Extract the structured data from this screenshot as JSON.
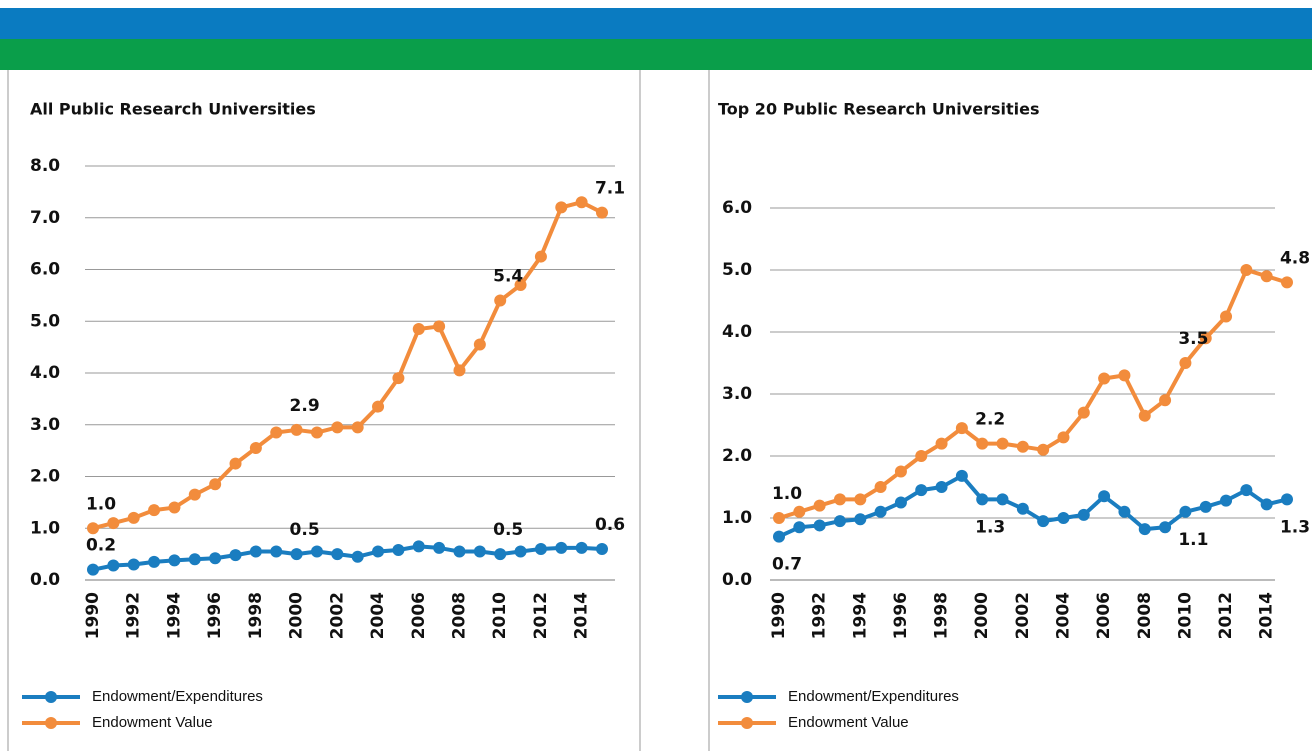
{
  "chart_data": [
    {
      "type": "line",
      "title": "All Public Research Universities",
      "categories": [
        "1990",
        null,
        "1992",
        null,
        "1994",
        null,
        "1996",
        null,
        "1998",
        null,
        "2000",
        null,
        "2002",
        null,
        "2004",
        null,
        "2006",
        null,
        "2008",
        null,
        "2010",
        null,
        "2012",
        null,
        "2014",
        null
      ],
      "series": [
        {
          "name": "Endowment/Expenditures",
          "color": "#1a7dc0",
          "values": [
            0.2,
            0.28,
            0.3,
            0.35,
            0.38,
            0.4,
            0.42,
            0.48,
            0.55,
            0.55,
            0.5,
            0.55,
            0.5,
            0.45,
            0.55,
            0.58,
            0.65,
            0.62,
            0.55,
            0.55,
            0.5,
            0.55,
            0.6,
            0.62,
            0.62,
            0.6
          ],
          "value_labels": [
            "0.2",
            null,
            null,
            null,
            null,
            null,
            null,
            null,
            null,
            null,
            "0.5",
            null,
            null,
            null,
            null,
            null,
            null,
            null,
            null,
            null,
            "0.5",
            null,
            null,
            null,
            null,
            "0.6"
          ]
        },
        {
          "name": "Endowment Value",
          "color": "#f28c3c",
          "values": [
            1.0,
            1.1,
            1.2,
            1.35,
            1.4,
            1.65,
            1.85,
            2.25,
            2.55,
            2.85,
            2.9,
            2.85,
            2.95,
            2.95,
            3.35,
            3.9,
            4.85,
            4.9,
            4.05,
            4.55,
            5.4,
            5.7,
            6.25,
            7.2,
            7.3,
            7.1
          ],
          "value_labels": [
            "1.0",
            null,
            null,
            null,
            null,
            null,
            null,
            null,
            null,
            null,
            "2.9",
            null,
            null,
            null,
            null,
            null,
            null,
            null,
            null,
            null,
            "5.4",
            null,
            null,
            null,
            null,
            "7.1"
          ]
        }
      ],
      "ylim": [
        0,
        8
      ],
      "yticks": [
        {
          "value": 0,
          "label": "0.0"
        },
        {
          "value": 1,
          "label": "1.0"
        },
        {
          "value": 2,
          "label": "2.0"
        },
        {
          "value": 3,
          "label": "3.0"
        },
        {
          "value": 4,
          "label": "4.0"
        },
        {
          "value": 5,
          "label": "5.0"
        },
        {
          "value": 6,
          "label": "6.0"
        },
        {
          "value": 7,
          "label": "7.0"
        },
        {
          "value": 8,
          "label": "8.0"
        }
      ],
      "grid": true
    },
    {
      "type": "line",
      "title": "Top 20 Public Research Universities",
      "categories": [
        "1990",
        null,
        "1992",
        null,
        "1994",
        null,
        "1996",
        null,
        "1998",
        null,
        "2000",
        null,
        "2002",
        null,
        "2004",
        null,
        "2006",
        null,
        "2008",
        null,
        "2010",
        null,
        "2012",
        null,
        "2014",
        null
      ],
      "series": [
        {
          "name": "Endowment/Expenditures",
          "color": "#1a7dc0",
          "values": [
            0.7,
            0.85,
            0.88,
            0.95,
            0.98,
            1.1,
            1.25,
            1.45,
            1.5,
            1.68,
            1.3,
            1.3,
            1.15,
            0.95,
            1.0,
            1.05,
            1.35,
            1.1,
            0.82,
            0.85,
            1.1,
            1.18,
            1.28,
            1.45,
            1.22,
            1.3
          ],
          "value_labels": [
            "0.7",
            null,
            null,
            null,
            null,
            null,
            null,
            null,
            null,
            null,
            "1.3",
            null,
            null,
            null,
            null,
            null,
            null,
            null,
            null,
            null,
            "1.1",
            null,
            null,
            null,
            null,
            "1.3"
          ]
        },
        {
          "name": "Endowment Value",
          "color": "#f28c3c",
          "values": [
            1.0,
            1.1,
            1.2,
            1.3,
            1.3,
            1.5,
            1.75,
            2.0,
            2.2,
            2.45,
            2.2,
            2.2,
            2.15,
            2.1,
            2.3,
            2.7,
            3.25,
            3.3,
            2.65,
            2.9,
            3.5,
            3.9,
            4.25,
            5.0,
            4.9,
            4.8
          ],
          "value_labels": [
            "1.0",
            null,
            null,
            null,
            null,
            null,
            null,
            null,
            null,
            null,
            "2.2",
            null,
            null,
            null,
            null,
            null,
            null,
            null,
            null,
            null,
            "3.5",
            null,
            null,
            null,
            null,
            "4.8"
          ]
        }
      ],
      "ylim": [
        0,
        6
      ],
      "yticks": [
        {
          "value": 0,
          "label": "0.0"
        },
        {
          "value": 1,
          "label": "1.0"
        },
        {
          "value": 2,
          "label": "2.0"
        },
        {
          "value": 3,
          "label": "3.0"
        },
        {
          "value": 4,
          "label": "4.0"
        },
        {
          "value": 5,
          "label": "5.0"
        },
        {
          "value": 6,
          "label": "6.0"
        }
      ],
      "grid": true
    }
  ]
}
